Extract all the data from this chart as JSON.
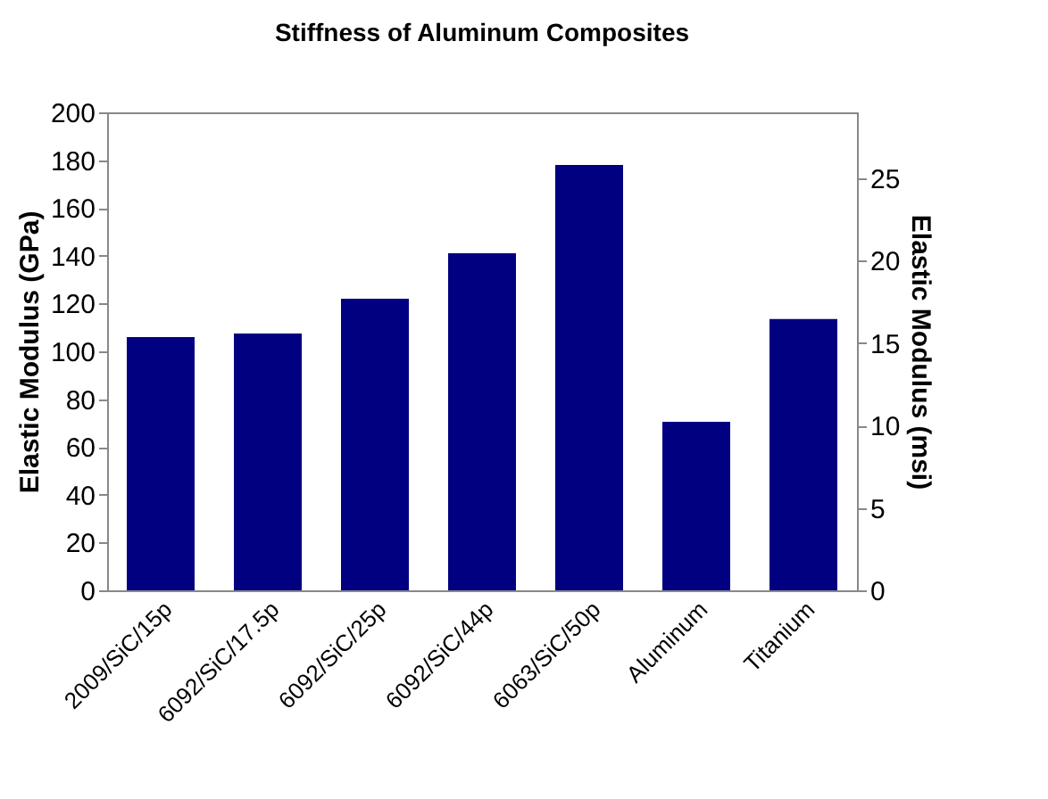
{
  "chart_data": {
    "type": "bar",
    "title": "Stiffness of Aluminum Composites",
    "ylabel": "Elastic Modulus (GPa)",
    "y2label": "Elastic Modulus (msi)",
    "categories": [
      "2009/SiC/15p",
      "6092/SiC/17.5p",
      "6092/SiC/25p",
      "6092/SiC/44p",
      "6063/SiC/50p",
      "Aluminum",
      "Titanium"
    ],
    "values": [
      106,
      107.5,
      122,
      141,
      178,
      70.5,
      113.5
    ],
    "color": "#000080",
    "ylim": [
      0,
      200
    ],
    "yticks": [
      0,
      20,
      40,
      60,
      80,
      100,
      120,
      140,
      160,
      180,
      200
    ],
    "y2lim": [
      0,
      29
    ],
    "y2ticks": [
      0,
      5,
      10,
      15,
      20,
      25
    ],
    "grid": false
  }
}
